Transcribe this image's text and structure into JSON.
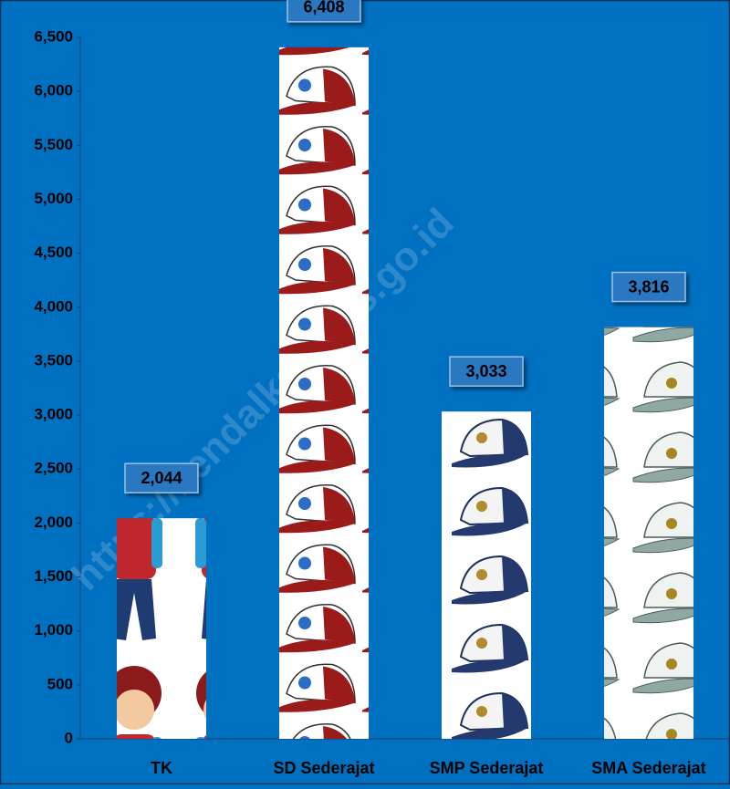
{
  "chart_data": {
    "type": "bar",
    "categories": [
      "TK",
      "SD Sederajat",
      "SMP Sederajat",
      "SMA Sederajat"
    ],
    "values": [
      2044,
      6408,
      3033,
      3816
    ],
    "value_labels": [
      "2,044",
      "6,408",
      "3,033",
      "3,816"
    ],
    "ylim": [
      0,
      6500
    ],
    "yticks": [
      0,
      500,
      {
        "value": 1000,
        "label": "1,000"
      },
      {
        "value": 1500,
        "label": "1,500"
      },
      {
        "value": 2000,
        "label": "2,000"
      },
      {
        "value": 2500,
        "label": "2,500"
      },
      {
        "value": 3000,
        "label": "3,000"
      },
      {
        "value": 3500,
        "label": "3,500"
      },
      {
        "value": 4000,
        "label": "4,000"
      },
      {
        "value": 4500,
        "label": "4,500"
      },
      {
        "value": 5000,
        "label": "5,000"
      },
      {
        "value": 5500,
        "label": "5,500"
      },
      {
        "value": 6000,
        "label": "6,000"
      },
      {
        "value": 6500,
        "label": "6,500"
      }
    ],
    "watermark": "https://kendalkab.bps.go.id"
  }
}
